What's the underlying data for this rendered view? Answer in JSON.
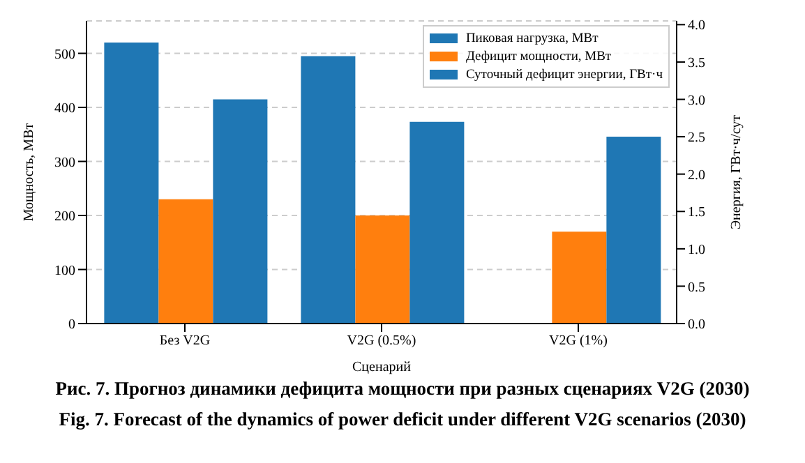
{
  "chart_data": {
    "type": "bar",
    "xlabel": "Сценарий",
    "ylabel": "Мощность, МВт",
    "y2label": "Энергия, ГВт·ч/сут",
    "categories": [
      "Без V2G",
      "V2G (0.5%)",
      "V2G (1%)"
    ],
    "series": [
      {
        "name": "Пиковая нагрузка, МВт",
        "color": "#1f77b4",
        "values": [
          520,
          495,
          null
        ]
      },
      {
        "name": "Дефицит мощности, МВт",
        "color": "#ff7f0e",
        "values": [
          230,
          200,
          170
        ]
      },
      {
        "name": "Суточный дефицит энергии, ГВт·ч",
        "color": "#1f77b4",
        "values": [
          3.0,
          2.7,
          2.5
        ],
        "axis": "y2"
      }
    ],
    "ylim": [
      0,
      560
    ],
    "yticks": [
      0,
      100,
      200,
      300,
      400,
      500
    ],
    "y2lim": [
      0,
      4.05
    ],
    "y2ticks": [
      {
        "value": 0,
        "label": "0.0"
      },
      {
        "value": 0.5,
        "label": "0.5"
      },
      {
        "value": 1,
        "label": "1.0"
      },
      {
        "value": 1.5,
        "label": "1.5"
      },
      {
        "value": 2,
        "label": "2.0"
      },
      {
        "value": 2.5,
        "label": "2.5"
      },
      {
        "value": 3,
        "label": "3.0"
      },
      {
        "value": 3.5,
        "label": "3.5"
      },
      {
        "value": 4,
        "label": "4.0"
      }
    ],
    "grid": "y",
    "legend": "top right",
    "annotations": [
      "Рис. 7. Прогноз динамики дефицита мощности при разных сценариях V2G (2030)",
      "Fig. 7. Forecast of the dynamics of power deficit under different V2G scenarios (2030)"
    ]
  }
}
